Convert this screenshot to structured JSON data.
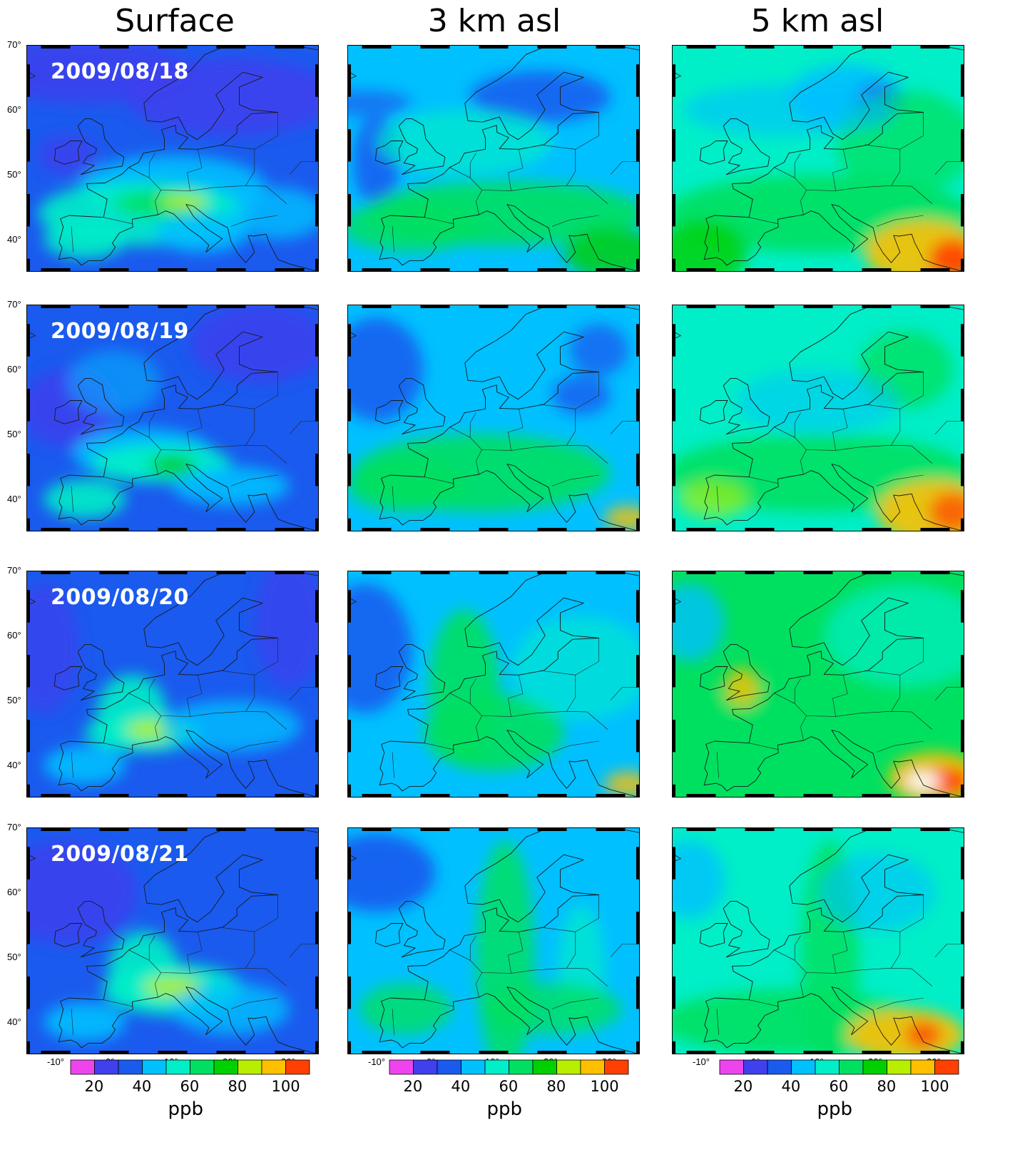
{
  "columns": [
    {
      "title": "Surface"
    },
    {
      "title": "3 km asl"
    },
    {
      "title": "5 km asl"
    }
  ],
  "dates": [
    "2009/08/18",
    "2009/08/19",
    "2009/08/20",
    "2009/08/21"
  ],
  "lat_ticks": [
    "70°",
    "60°",
    "50°",
    "40°"
  ],
  "lon_ticks": [
    "-10°",
    "0°",
    "10°",
    "20°",
    "30°"
  ],
  "colorbar": {
    "colors": [
      "#ee44ee",
      "#4040ee",
      "#1a5aee",
      "#00c0ff",
      "#00eec8",
      "#00e060",
      "#00d000",
      "#b8ee00",
      "#ffc000",
      "#ff4000"
    ],
    "tick_labels": [
      "20",
      "40",
      "60",
      "80",
      "100"
    ],
    "unit": "ppb"
  },
  "map": {
    "lon_range": [
      -15,
      35
    ],
    "lat_range": [
      35,
      70
    ],
    "land_fill": "transparent",
    "coastline_color": "#1a1a1a"
  }
}
